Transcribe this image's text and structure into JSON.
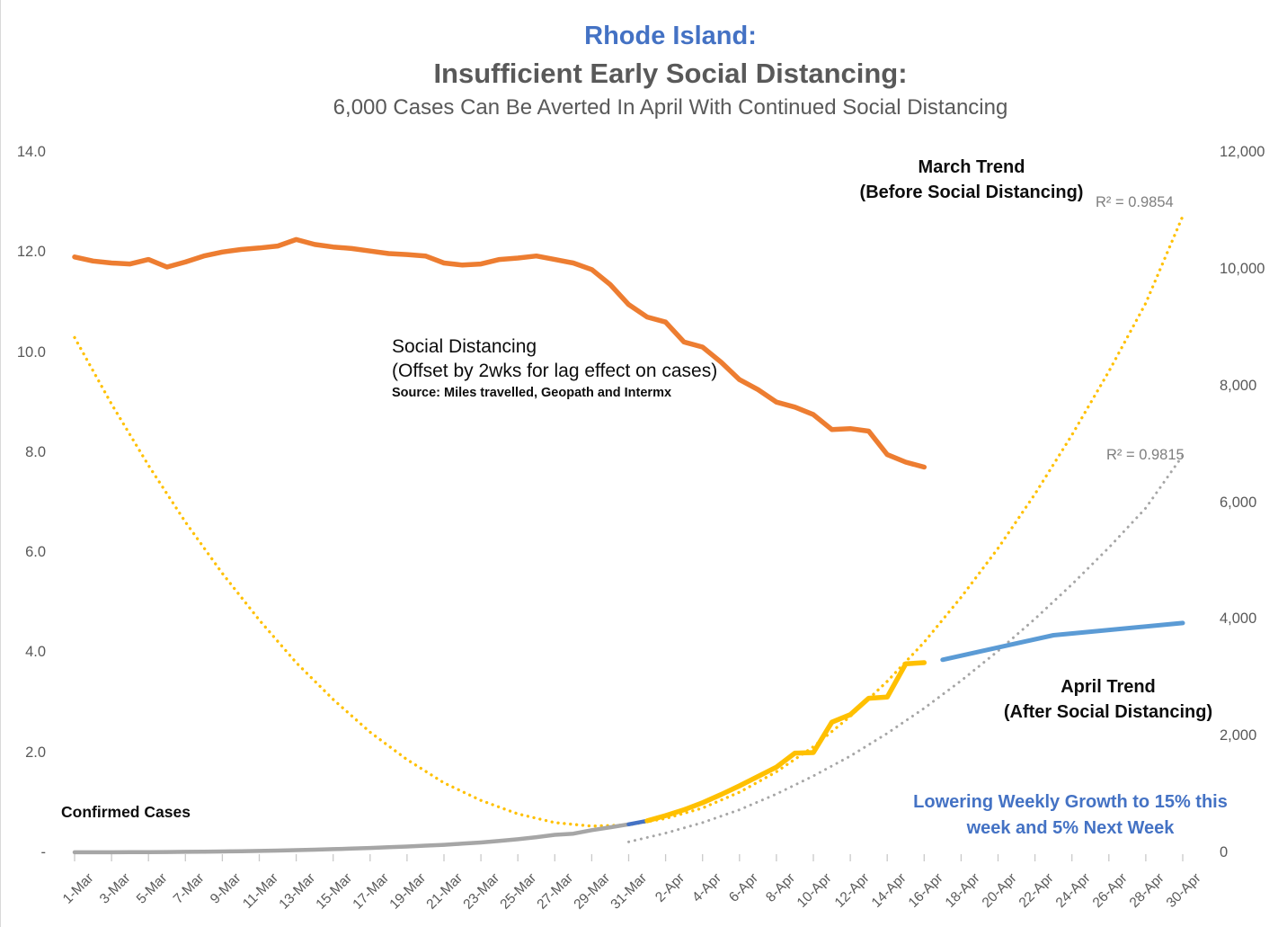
{
  "header": {
    "title1": "Rhode Island:",
    "title2": "Insufficient Early Social Distancing:",
    "title3": "6,000 Cases Can Be Averted In April With Continued Social Distancing"
  },
  "annotations": {
    "march_trend": {
      "line1": "March Trend",
      "line2": "(Before Social Distancing)"
    },
    "r2_march": "R² = 0.9854",
    "social_distancing": {
      "line1": "Social Distancing",
      "line2": "(Offset by 2wks for lag effect on cases)",
      "source": "Source: Miles travelled, Geopath and Intermx"
    },
    "r2_april": "R² = 0.9815",
    "april_trend": {
      "line1": "April Trend",
      "line2": "(After Social Distancing)"
    },
    "confirmed_cases": "Confirmed Cases",
    "growth_note": {
      "line1": "Lowering Weekly Growth to 15% this",
      "line2": "week and 5% Next Week"
    }
  },
  "colors": {
    "title_blue": "#4472C4",
    "dark_gray_text": "#595959",
    "orange": "#ED7D31",
    "gold": "#FFC000",
    "gray": "#A6A6A6",
    "trend_blue": "#5B9BD5",
    "r2_gray": "#7f7f7f"
  },
  "chart_data": {
    "type": "line",
    "title": "Rhode Island: Insufficient Early Social Distancing",
    "x_categories": [
      "1-Mar",
      "3-Mar",
      "5-Mar",
      "7-Mar",
      "9-Mar",
      "11-Mar",
      "13-Mar",
      "15-Mar",
      "17-Mar",
      "19-Mar",
      "21-Mar",
      "23-Mar",
      "25-Mar",
      "27-Mar",
      "29-Mar",
      "31-Mar",
      "2-Apr",
      "4-Apr",
      "6-Apr",
      "8-Apr",
      "10-Apr",
      "12-Apr",
      "14-Apr",
      "16-Apr",
      "18-Apr",
      "20-Apr",
      "22-Apr",
      "24-Apr",
      "26-Apr",
      "28-Apr",
      "30-Apr"
    ],
    "left_axis": {
      "tick_labels": [
        "14.0",
        "12.0",
        "10.0",
        "8.0",
        "6.0",
        "4.0",
        "2.0",
        "-"
      ],
      "tick_values": [
        14,
        12,
        10,
        8,
        6,
        4,
        2,
        0
      ],
      "min": 0,
      "max": 14
    },
    "right_axis": {
      "tick_labels": [
        "12,000",
        "10,000",
        "8,000",
        "6,000",
        "4,000",
        "2,000",
        "0"
      ],
      "tick_values": [
        12000,
        10000,
        8000,
        6000,
        4000,
        2000,
        0
      ],
      "min": 0,
      "max": 12000
    },
    "grid": false,
    "legend": "none (inline text annotations)",
    "series": [
      {
        "key": "march-trend-dotted",
        "name": "March Trend fit (Before Social Distancing), R²=0.9854",
        "axis": "right",
        "color": "#FFC000",
        "style": "dotted",
        "width": 3.3,
        "gap": 6.8,
        "start_day": 0,
        "step": 2,
        "values": [
          8820,
          7680,
          6630,
          5660,
          4780,
          3980,
          3250,
          2620,
          2060,
          1590,
          1190,
          890,
          660,
          510,
          450,
          470,
          580,
          760,
          1030,
          1380,
          1810,
          2330,
          2930,
          3600,
          4370,
          5210,
          6140,
          7150,
          8240,
          9410,
          10900
        ]
      },
      {
        "key": "april-trend-dotted",
        "name": "April Trend fit (After Social Distancing), R²=0.9815",
        "axis": "right",
        "color": "#A6A6A6",
        "style": "dotted",
        "width": 3,
        "gap": 7,
        "start_day": 30,
        "step": 2,
        "values": [
          180,
          330,
          510,
          730,
          1000,
          1310,
          1650,
          2040,
          2470,
          2940,
          3450,
          4000,
          4590,
          5220,
          5900,
          6800
        ]
      },
      {
        "key": "confirmed-cases-line",
        "name": "Confirmed Cases (March, cumulative)",
        "axis": "right",
        "color": "#A6A6A6",
        "style": "solid",
        "width": 4.5,
        "start_day": 0,
        "step": 1,
        "values": [
          1,
          2,
          2,
          3,
          4,
          6,
          9,
          12,
          16,
          20,
          25,
          31,
          38,
          46,
          55,
          65,
          76,
          88,
          100,
          115,
          130,
          150,
          170,
          195,
          225,
          260,
          300,
          320,
          380,
          430,
          480
        ]
      },
      {
        "key": "april-trend-bridge",
        "name": "April trend (31-Mar to 1-Apr segment)",
        "axis": "right",
        "color": "#4472C4",
        "style": "solid",
        "width": 4.5,
        "start_day": 30,
        "step": 1,
        "values": [
          480,
          540
        ]
      },
      {
        "key": "confirmed-cases-recent-line",
        "name": "Confirmed Cases (April, cumulative)",
        "axis": "right",
        "color": "#FFC000",
        "style": "solid",
        "width": 5.5,
        "start_day": 31,
        "step": 1,
        "values": [
          540,
          630,
          730,
          850,
          990,
          1140,
          1300,
          1460,
          1700,
          1710,
          2230,
          2360,
          2640,
          2660,
          3230,
          3250
        ]
      },
      {
        "key": "social-distancing-line",
        "name": "Social Distancing (miles travelled, offset 2wks)",
        "axis": "left",
        "color": "#ED7D31",
        "style": "solid",
        "width": 5.5,
        "start_day": 0,
        "step": 1,
        "values": [
          11.9,
          11.82,
          11.78,
          11.76,
          11.85,
          11.7,
          11.8,
          11.92,
          12.0,
          12.05,
          12.08,
          12.12,
          12.25,
          12.15,
          12.1,
          12.07,
          12.02,
          11.97,
          11.95,
          11.92,
          11.78,
          11.74,
          11.76,
          11.85,
          11.88,
          11.92,
          11.85,
          11.78,
          11.65,
          11.35,
          10.95,
          10.7,
          10.6,
          10.2,
          10.1,
          9.8,
          9.45,
          9.25,
          9.0,
          8.9,
          8.75,
          8.45,
          8.47,
          8.42,
          7.95,
          7.8,
          7.7
        ]
      },
      {
        "key": "april-trend-line",
        "name": "April Trend projection (15% this week, 5% next week)",
        "axis": "right",
        "color": "#5B9BD5",
        "style": "solid",
        "width": 5,
        "points": [
          [
            47,
            3300
          ],
          [
            53,
            3720
          ],
          [
            60,
            3930
          ]
        ]
      }
    ]
  }
}
